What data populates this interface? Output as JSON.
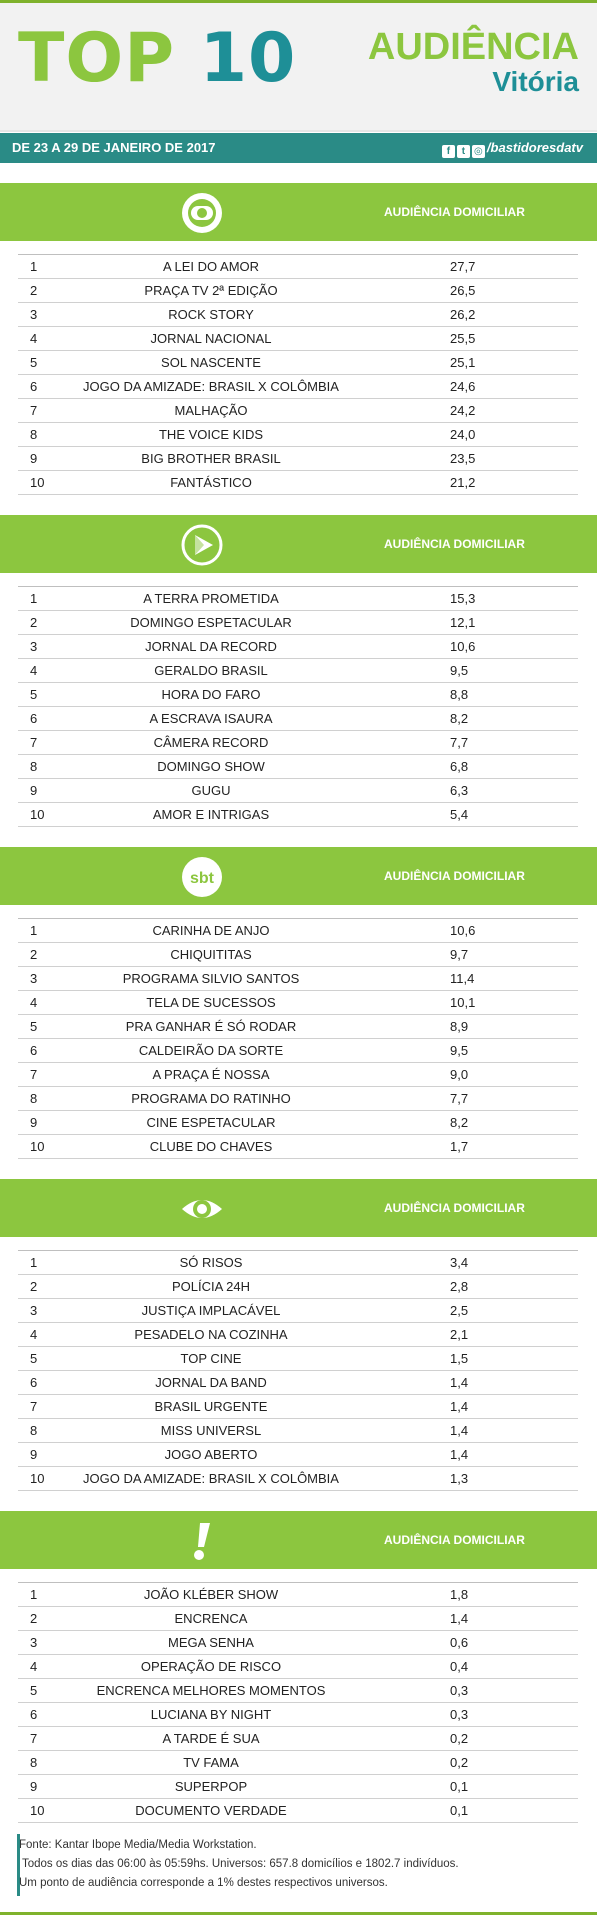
{
  "header": {
    "top_word": "TOP",
    "top_num": "10",
    "aud_line1": "AUDIÊNCIA",
    "aud_line2": "Vitória"
  },
  "datebar": {
    "date": "DE 23 A 29 DE JANEIRO DE 2017",
    "social_handle": "/bastidoresdatv"
  },
  "colors": {
    "green": "#8cc63f",
    "teal": "#1e8f97",
    "bar": "#2a8b86"
  },
  "sections": [
    {
      "logo": "globo-logo-icon",
      "label": "AUDIÊNCIA DOMICILIAR",
      "rows": [
        {
          "pos": "1",
          "program": "A LEI DO AMOR",
          "value": "27,7"
        },
        {
          "pos": "2",
          "program": "PRAÇA TV 2ª EDIÇÃO",
          "value": "26,5"
        },
        {
          "pos": "3",
          "program": "ROCK STORY",
          "value": "26,2"
        },
        {
          "pos": "4",
          "program": "JORNAL NACIONAL",
          "value": "25,5"
        },
        {
          "pos": "5",
          "program": "SOL NASCENTE",
          "value": "25,1"
        },
        {
          "pos": "6",
          "program": "JOGO DA AMIZADE: BRASIL X COLÔMBIA",
          "value": "24,6"
        },
        {
          "pos": "7",
          "program": "MALHAÇÃO",
          "value": "24,2"
        },
        {
          "pos": "8",
          "program": "THE VOICE KIDS",
          "value": "24,0"
        },
        {
          "pos": "9",
          "program": "BIG BROTHER BRASIL",
          "value": "23,5"
        },
        {
          "pos": "10",
          "program": "FANTÁSTICO",
          "value": "21,2"
        }
      ]
    },
    {
      "logo": "record-logo-icon",
      "label": "AUDIÊNCIA DOMICILIAR",
      "rows": [
        {
          "pos": "1",
          "program": "A TERRA PROMETIDA",
          "value": "15,3"
        },
        {
          "pos": "2",
          "program": "DOMINGO ESPETACULAR",
          "value": "12,1"
        },
        {
          "pos": "3",
          "program": "JORNAL DA RECORD",
          "value": "10,6"
        },
        {
          "pos": "4",
          "program": "GERALDO BRASIL",
          "value": "9,5"
        },
        {
          "pos": "5",
          "program": "HORA DO FARO",
          "value": "8,8"
        },
        {
          "pos": "6",
          "program": "A ESCRAVA ISAURA",
          "value": "8,2"
        },
        {
          "pos": "7",
          "program": "CÂMERA RECORD",
          "value": "7,7"
        },
        {
          "pos": "8",
          "program": "DOMINGO SHOW",
          "value": "6,8"
        },
        {
          "pos": "9",
          "program": "GUGU",
          "value": "6,3"
        },
        {
          "pos": "10",
          "program": "AMOR E INTRIGAS",
          "value": "5,4"
        }
      ]
    },
    {
      "logo": "sbt-logo-icon",
      "logo_text": "sbt",
      "label": "AUDIÊNCIA DOMICILIAR",
      "rows": [
        {
          "pos": "1",
          "program": "CARINHA DE ANJO",
          "value": "10,6"
        },
        {
          "pos": "2",
          "program": "CHIQUITITAS",
          "value": "9,7"
        },
        {
          "pos": "3",
          "program": "PROGRAMA SILVIO SANTOS",
          "value": "11,4"
        },
        {
          "pos": "4",
          "program": "TELA DE SUCESSOS",
          "value": "10,1"
        },
        {
          "pos": "5",
          "program": "PRA GANHAR É SÓ RODAR",
          "value": "8,9"
        },
        {
          "pos": "6",
          "program": "CALDEIRÃO DA SORTE",
          "value": "9,5"
        },
        {
          "pos": "7",
          "program": "A PRAÇA É NOSSA",
          "value": "9,0"
        },
        {
          "pos": "8",
          "program": "PROGRAMA DO RATINHO",
          "value": "7,7"
        },
        {
          "pos": "9",
          "program": "CINE ESPETACULAR",
          "value": "8,2"
        },
        {
          "pos": "10",
          "program": "CLUBE DO CHAVES",
          "value": "1,7"
        }
      ]
    },
    {
      "logo": "band-logo-icon",
      "label": "AUDIÊNCIA DOMICILIAR",
      "rows": [
        {
          "pos": "1",
          "program": "SÓ RISOS",
          "value": "3,4"
        },
        {
          "pos": "2",
          "program": "POLÍCIA 24H",
          "value": "2,8"
        },
        {
          "pos": "3",
          "program": "JUSTIÇA IMPLACÁVEL",
          "value": "2,5"
        },
        {
          "pos": "4",
          "program": "PESADELO NA COZINHA",
          "value": "2,1"
        },
        {
          "pos": "5",
          "program": "TOP CINE",
          "value": "1,5"
        },
        {
          "pos": "6",
          "program": "JORNAL DA BAND",
          "value": "1,4"
        },
        {
          "pos": "7",
          "program": "BRASIL URGENTE",
          "value": "1,4"
        },
        {
          "pos": "8",
          "program": "MISS UNIVERSL",
          "value": "1,4"
        },
        {
          "pos": "9",
          "program": "JOGO ABERTO",
          "value": "1,4"
        },
        {
          "pos": "10",
          "program": "JOGO DA AMIZADE: BRASIL X COLÔMBIA",
          "value": "1,3"
        }
      ]
    },
    {
      "logo": "redetv-logo-icon",
      "label": "AUDIÊNCIA DOMICILIAR",
      "rows": [
        {
          "pos": "1",
          "program": "JOÃO KLÉBER SHOW",
          "value": "1,8"
        },
        {
          "pos": "2",
          "program": "ENCRENCA",
          "value": "1,4"
        },
        {
          "pos": "3",
          "program": "MEGA SENHA",
          "value": "0,6"
        },
        {
          "pos": "4",
          "program": "OPERAÇÃO DE RISCO",
          "value": "0,4"
        },
        {
          "pos": "5",
          "program": "ENCRENCA MELHORES MOMENTOS",
          "value": "0,3"
        },
        {
          "pos": "6",
          "program": "LUCIANA BY NIGHT",
          "value": "0,3"
        },
        {
          "pos": "7",
          "program": "A TARDE É SUA",
          "value": "0,2"
        },
        {
          "pos": "8",
          "program": "TV FAMA",
          "value": "0,2"
        },
        {
          "pos": "9",
          "program": "SUPERPOP",
          "value": "0,1"
        },
        {
          "pos": "10",
          "program": "DOCUMENTO VERDADE",
          "value": "0,1"
        }
      ]
    }
  ],
  "footer": {
    "line1": "Fonte: Kantar Ibope Media/Media Workstation.",
    "line2": " Todos os dias das 06:00 às 05:59hs. Universos: 657.8 domicílios e 1802.7 indivíduos.",
    "line3": "Um ponto de audiência corresponde a 1% destes respectivos universos."
  }
}
